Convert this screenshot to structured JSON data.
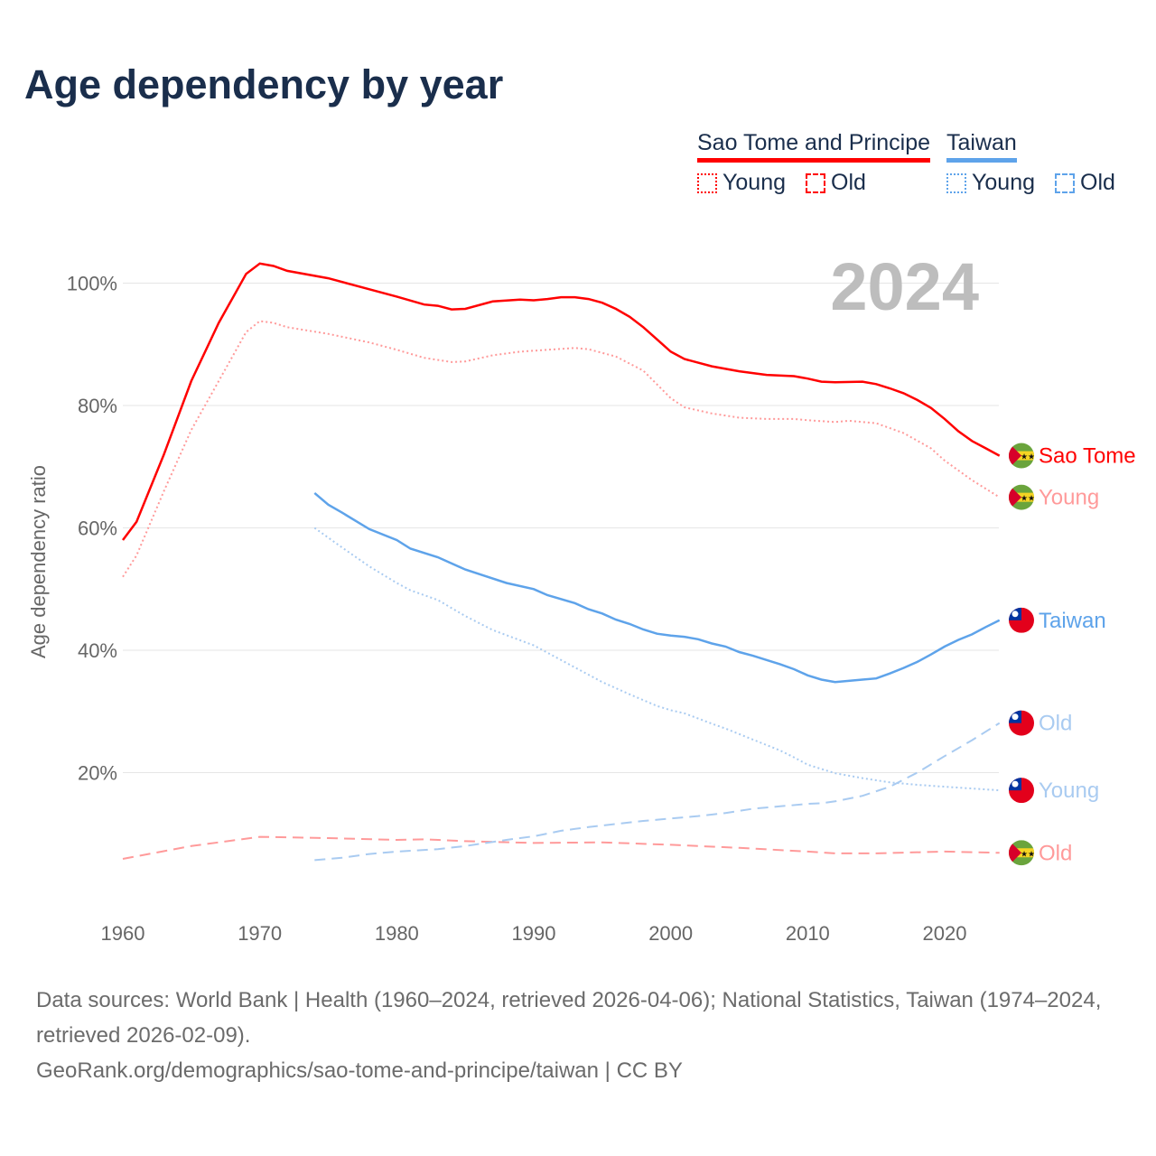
{
  "title": "Age dependency by year",
  "legend": {
    "groups": [
      {
        "name": "Sao Tome and Principe",
        "color": "#ff0000",
        "items": [
          "Young",
          "Old"
        ]
      },
      {
        "name": "Taiwan",
        "color": "#5ea3ea",
        "items": [
          "Young",
          "Old"
        ]
      }
    ]
  },
  "footer": {
    "sources": "Data sources: World Bank | Health (1960–2024, retrieved 2026-04-06); National Statistics, Taiwan (1974–2024, retrieved 2026-02-09).",
    "credit": "GeoRank.org/demographics/sao-tome-and-principe/taiwan | CC BY"
  },
  "chart_data": {
    "type": "line",
    "title": "Age dependency by year",
    "ylabel": "Age dependency ratio",
    "xlabel": "",
    "year_watermark": "2024",
    "xlim": [
      1960,
      2024
    ],
    "ylim": [
      0,
      105
    ],
    "x_ticks": [
      "1960",
      "1970",
      "1980",
      "1990",
      "2000",
      "2010",
      "2020"
    ],
    "y_ticks": [
      "20%",
      "40%",
      "60%",
      "80%",
      "100%"
    ],
    "grid": true,
    "series": [
      {
        "name": "Sao Tome and Principe",
        "end_label": "Sao Tome",
        "flag": "sao-tome",
        "color": "#ff0000",
        "style": "solid",
        "points": [
          [
            1960,
            58
          ],
          [
            1961,
            61
          ],
          [
            1963,
            72
          ],
          [
            1965,
            84
          ],
          [
            1967,
            93.5
          ],
          [
            1969,
            101.5
          ],
          [
            1970,
            103.2
          ],
          [
            1971,
            102.8
          ],
          [
            1972,
            102
          ],
          [
            1975,
            100.8
          ],
          [
            1978,
            99
          ],
          [
            1980,
            97.8
          ],
          [
            1982,
            96.5
          ],
          [
            1983,
            96.3
          ],
          [
            1984,
            95.7
          ],
          [
            1985,
            95.8
          ],
          [
            1987,
            97
          ],
          [
            1989,
            97.3
          ],
          [
            1990,
            97.2
          ],
          [
            1991,
            97.4
          ],
          [
            1992,
            97.7
          ],
          [
            1993,
            97.7
          ],
          [
            1994,
            97.4
          ],
          [
            1995,
            96.8
          ],
          [
            1996,
            95.8
          ],
          [
            1997,
            94.5
          ],
          [
            1998,
            92.8
          ],
          [
            1999,
            90.8
          ],
          [
            2000,
            88.8
          ],
          [
            2001,
            87.6
          ],
          [
            2002,
            87
          ],
          [
            2003,
            86.4
          ],
          [
            2005,
            85.6
          ],
          [
            2007,
            85
          ],
          [
            2009,
            84.8
          ],
          [
            2010,
            84.4
          ],
          [
            2011,
            83.9
          ],
          [
            2012,
            83.8
          ],
          [
            2014,
            83.9
          ],
          [
            2015,
            83.5
          ],
          [
            2016,
            82.8
          ],
          [
            2017,
            82
          ],
          [
            2018,
            80.9
          ],
          [
            2019,
            79.6
          ],
          [
            2020,
            77.8
          ],
          [
            2021,
            75.8
          ],
          [
            2022,
            74.2
          ],
          [
            2023,
            73
          ],
          [
            2024,
            71.8
          ]
        ]
      },
      {
        "name": "Sao Tome and Principe Young",
        "end_label": "Young",
        "flag": "sao-tome",
        "color": "#ff9a9a",
        "style": "dotted",
        "points": [
          [
            1960,
            52
          ],
          [
            1961,
            55.5
          ],
          [
            1963,
            66
          ],
          [
            1965,
            76
          ],
          [
            1967,
            84
          ],
          [
            1969,
            92
          ],
          [
            1970,
            93.8
          ],
          [
            1971,
            93.5
          ],
          [
            1972,
            92.8
          ],
          [
            1975,
            91.7
          ],
          [
            1978,
            90.3
          ],
          [
            1980,
            89.1
          ],
          [
            1982,
            87.8
          ],
          [
            1984,
            87.1
          ],
          [
            1985,
            87.2
          ],
          [
            1987,
            88.2
          ],
          [
            1989,
            88.8
          ],
          [
            1991,
            89.1
          ],
          [
            1993,
            89.4
          ],
          [
            1994,
            89.2
          ],
          [
            1996,
            88
          ],
          [
            1998,
            85.7
          ],
          [
            2000,
            81.2
          ],
          [
            2001,
            79.7
          ],
          [
            2003,
            78.7
          ],
          [
            2005,
            78
          ],
          [
            2007,
            77.8
          ],
          [
            2009,
            77.8
          ],
          [
            2010,
            77.6
          ],
          [
            2012,
            77.3
          ],
          [
            2013,
            77.5
          ],
          [
            2015,
            77.1
          ],
          [
            2017,
            75.5
          ],
          [
            2019,
            73
          ],
          [
            2020,
            71
          ],
          [
            2022,
            67.8
          ],
          [
            2024,
            65
          ]
        ]
      },
      {
        "name": "Sao Tome and Principe Old",
        "end_label": "Old",
        "flag": "sao-tome",
        "color": "#ff9a9a",
        "style": "dashed",
        "points": [
          [
            1960,
            5.9
          ],
          [
            1965,
            8
          ],
          [
            1970,
            9.5
          ],
          [
            1975,
            9.3
          ],
          [
            1980,
            9
          ],
          [
            1982,
            9.1
          ],
          [
            1985,
            8.8
          ],
          [
            1990,
            8.5
          ],
          [
            1995,
            8.6
          ],
          [
            2000,
            8.2
          ],
          [
            2005,
            7.7
          ],
          [
            2010,
            7.1
          ],
          [
            2012,
            6.8
          ],
          [
            2015,
            6.8
          ],
          [
            2020,
            7.1
          ],
          [
            2024,
            6.9
          ]
        ]
      },
      {
        "name": "Taiwan",
        "end_label": "Taiwan",
        "flag": "taiwan",
        "color": "#5ea3ea",
        "style": "solid",
        "points": [
          [
            1974,
            65.7
          ],
          [
            1975,
            63.8
          ],
          [
            1976,
            62.5
          ],
          [
            1978,
            59.8
          ],
          [
            1980,
            58
          ],
          [
            1981,
            56.6
          ],
          [
            1983,
            55.2
          ],
          [
            1985,
            53.2
          ],
          [
            1988,
            51
          ],
          [
            1990,
            50
          ],
          [
            1991,
            49
          ],
          [
            1993,
            47.7
          ],
          [
            1994,
            46.7
          ],
          [
            1995,
            46
          ],
          [
            1996,
            45
          ],
          [
            1997,
            44.3
          ],
          [
            1998,
            43.4
          ],
          [
            1999,
            42.7
          ],
          [
            2000,
            42.4
          ],
          [
            2001,
            42.2
          ],
          [
            2002,
            41.8
          ],
          [
            2003,
            41.1
          ],
          [
            2004,
            40.6
          ],
          [
            2005,
            39.7
          ],
          [
            2006,
            39.1
          ],
          [
            2007,
            38.4
          ],
          [
            2008,
            37.7
          ],
          [
            2009,
            36.9
          ],
          [
            2010,
            35.9
          ],
          [
            2011,
            35.2
          ],
          [
            2012,
            34.8
          ],
          [
            2013,
            35
          ],
          [
            2014,
            35.2
          ],
          [
            2015,
            35.4
          ],
          [
            2016,
            36.2
          ],
          [
            2017,
            37.1
          ],
          [
            2018,
            38.1
          ],
          [
            2019,
            39.3
          ],
          [
            2020,
            40.6
          ],
          [
            2021,
            41.7
          ],
          [
            2022,
            42.6
          ],
          [
            2023,
            43.8
          ],
          [
            2024,
            44.9
          ]
        ]
      },
      {
        "name": "Taiwan Young",
        "end_label": "Young",
        "flag": "taiwan",
        "color": "#a9cbf1",
        "style": "dotted",
        "points": [
          [
            1974,
            60
          ],
          [
            1976,
            56.8
          ],
          [
            1978,
            53.7
          ],
          [
            1980,
            51
          ],
          [
            1981,
            49.8
          ],
          [
            1983,
            48.2
          ],
          [
            1985,
            45.6
          ],
          [
            1987,
            43.3
          ],
          [
            1990,
            40.8
          ],
          [
            1993,
            37.2
          ],
          [
            1995,
            34.8
          ],
          [
            1997,
            32.8
          ],
          [
            1999,
            30.9
          ],
          [
            2000,
            30.2
          ],
          [
            2001,
            29.7
          ],
          [
            2003,
            28
          ],
          [
            2004,
            27.2
          ],
          [
            2006,
            25.4
          ],
          [
            2008,
            23.6
          ],
          [
            2009,
            22.5
          ],
          [
            2010,
            21.3
          ],
          [
            2012,
            19.9
          ],
          [
            2014,
            19.1
          ],
          [
            2016,
            18.4
          ],
          [
            2018,
            18
          ],
          [
            2020,
            17.7
          ],
          [
            2022,
            17.4
          ],
          [
            2024,
            17.1
          ]
        ]
      },
      {
        "name": "Taiwan Old",
        "end_label": "Old",
        "flag": "taiwan",
        "color": "#a9cbf1",
        "style": "dashed",
        "points": [
          [
            1974,
            5.7
          ],
          [
            1976,
            6.1
          ],
          [
            1978,
            6.7
          ],
          [
            1980,
            7.1
          ],
          [
            1983,
            7.5
          ],
          [
            1985,
            8
          ],
          [
            1988,
            9
          ],
          [
            1990,
            9.6
          ],
          [
            1992,
            10.5
          ],
          [
            1994,
            11.1
          ],
          [
            1996,
            11.6
          ],
          [
            1998,
            12.1
          ],
          [
            2000,
            12.5
          ],
          [
            2002,
            12.9
          ],
          [
            2004,
            13.4
          ],
          [
            2006,
            14.1
          ],
          [
            2008,
            14.5
          ],
          [
            2010,
            14.9
          ],
          [
            2011,
            15
          ],
          [
            2012,
            15.3
          ],
          [
            2014,
            16.2
          ],
          [
            2016,
            17.7
          ],
          [
            2018,
            20
          ],
          [
            2020,
            22.7
          ],
          [
            2022,
            25.3
          ],
          [
            2024,
            28.1
          ]
        ]
      }
    ]
  }
}
